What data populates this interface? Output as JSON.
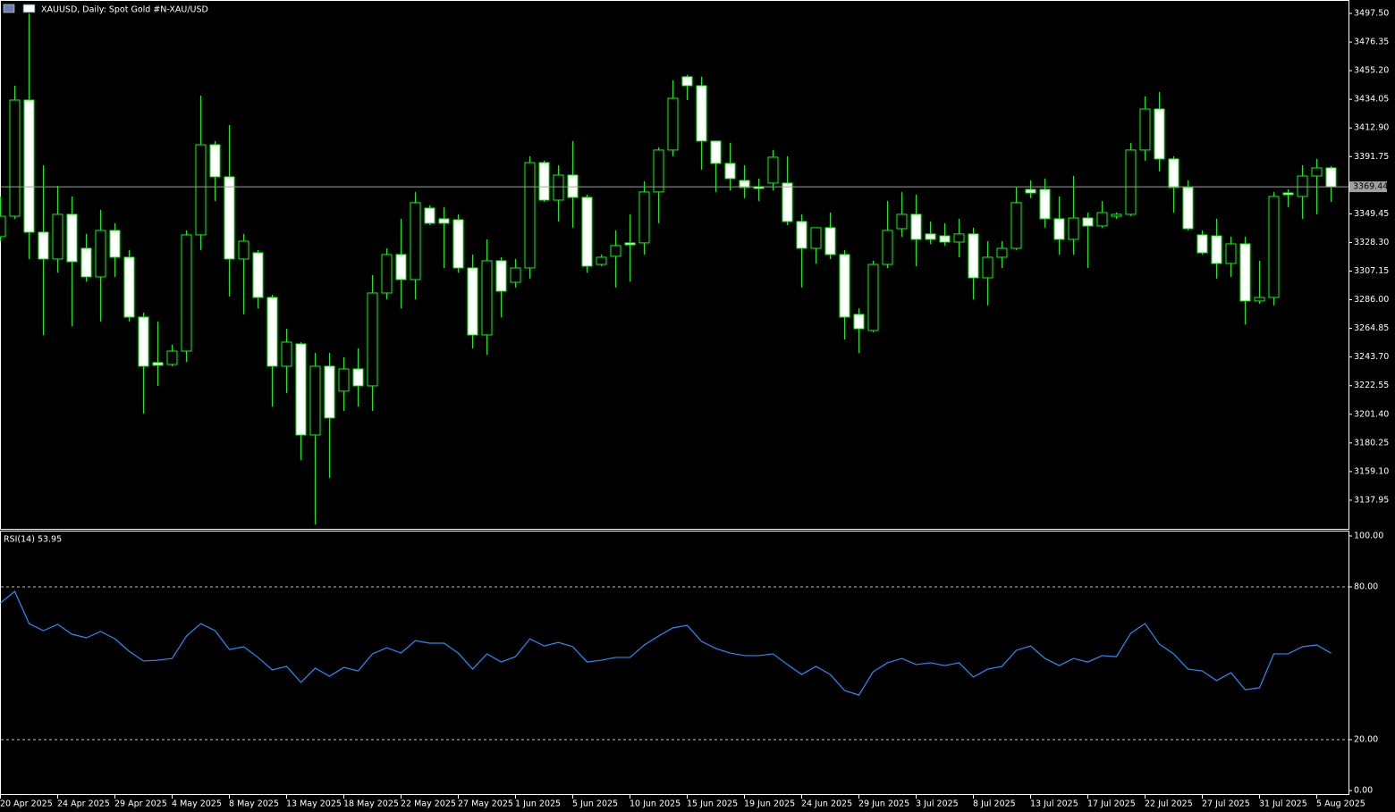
{
  "chart_data": [
    {
      "type": "candlestick",
      "title": "XAUUSD, Daily:  Spot Gold #N-XAU/USD",
      "categories": [
        "20 Apr 2025",
        null,
        null,
        null,
        "24 Apr 2025",
        null,
        null,
        null,
        "29 Apr 2025",
        null,
        null,
        null,
        "4 May 2025",
        null,
        null,
        null,
        "8 May 2025",
        null,
        null,
        null,
        "13 May 2025",
        null,
        null,
        null,
        "18 May 2025",
        null,
        null,
        null,
        "22 May 2025",
        null,
        null,
        null,
        "27 May 2025",
        null,
        null,
        null,
        "1 Jun 2025",
        null,
        null,
        null,
        "5 Jun 2025",
        null,
        null,
        null,
        "10 Jun 2025",
        null,
        null,
        null,
        "15 Jun 2025",
        null,
        null,
        null,
        "19 Jun 2025",
        null,
        null,
        null,
        "24 Jun 2025",
        null,
        null,
        null,
        "29 Jun 2025",
        null,
        null,
        null,
        "3 Jul 2025",
        null,
        null,
        null,
        "8 Jul 2025",
        null,
        null,
        null,
        "13 Jul 2025",
        null,
        null,
        null,
        "17 Jul 2025",
        null,
        null,
        null,
        "22 Jul 2025",
        null,
        null,
        null,
        "27 Jul 2025",
        null,
        null,
        null,
        "31 Jul 2025",
        null,
        null,
        null,
        "5 Aug 2025",
        null
      ],
      "open": [
        3332.6,
        3347.7,
        3433.5,
        3335.9,
        3316.1,
        3349.1,
        3324.0,
        3302.9,
        3337.2,
        3317.4,
        3273.2,
        3239.6,
        3238.2,
        3248.1,
        3333.9,
        3400.5,
        3376.8,
        3316.1,
        3320.7,
        3287.7,
        3236.9,
        3253.4,
        3186.1,
        3236.9,
        3218.5,
        3234.9,
        3222.4,
        3291.0,
        3319.4,
        3300.9,
        3353.7,
        3345.8,
        3345.1,
        3309.5,
        3260.0,
        3314.8,
        3298.9,
        3309.5,
        3387.3,
        3359.6,
        3378.1,
        3361.6,
        3312.1,
        3318.1,
        3328.0,
        3328.0,
        3365.6,
        3396.6,
        3450.7,
        3444.1,
        3403.2,
        3386.7,
        3374.1,
        3369.5,
        3372.2,
        3372.2,
        3343.8,
        3324.0,
        3339.2,
        3319.4,
        3275.2,
        3263.3,
        3312.1,
        3338.5,
        3349.1,
        3334.6,
        3333.2,
        3328.6,
        3334.6,
        3302.2,
        3317.4,
        3324.0,
        3367.5,
        3367.5,
        3345.8,
        3330.6,
        3346.4,
        3340.5,
        3347.7,
        3349.1,
        3396.6,
        3426.9,
        3390.0,
        3368.9,
        3333.9,
        3333.2,
        3312.8,
        3327.3,
        3285.1,
        3287.7,
        3364.9,
        3362.3,
        3377.4,
        3383.4
      ],
      "high": [
        3362.3,
        3444.1,
        3497.5,
        3385.4,
        3370.2,
        3362.3,
        3334.6,
        3352.4,
        3342.5,
        3322.7,
        3276.5,
        3269.9,
        3252.8,
        3337.2,
        3436.8,
        3403.2,
        3415.0,
        3334.6,
        3322.7,
        3289.7,
        3264.6,
        3254.7,
        3246.8,
        3246.8,
        3243.5,
        3250.1,
        3304.2,
        3324.0,
        3345.8,
        3365.6,
        3355.7,
        3354.4,
        3349.1,
        3319.4,
        3330.6,
        3317.4,
        3316.1,
        3392.0,
        3388.7,
        3385.4,
        3403.2,
        3363.6,
        3319.4,
        3337.2,
        3349.1,
        3373.5,
        3398.6,
        3448.0,
        3452.0,
        3450.7,
        3403.2,
        3401.9,
        3385.4,
        3375.5,
        3396.6,
        3392.0,
        3349.1,
        3339.2,
        3350.4,
        3322.7,
        3279.8,
        3314.8,
        3359.0,
        3365.6,
        3363.6,
        3343.8,
        3342.5,
        3345.8,
        3339.2,
        3329.3,
        3329.3,
        3368.9,
        3374.1,
        3375.5,
        3362.3,
        3377.4,
        3350.4,
        3359.0,
        3350.4,
        3401.9,
        3436.2,
        3439.5,
        3392.0,
        3374.1,
        3337.2,
        3345.8,
        3332.6,
        3332.6,
        3314.8,
        3365.6,
        3367.5,
        3385.4,
        3390.0,
        3384.7
      ],
      "low": [
        3329.3,
        3345.8,
        3316.1,
        3260.0,
        3306.2,
        3266.6,
        3299.6,
        3269.9,
        3302.9,
        3269.9,
        3202.0,
        3222.4,
        3236.9,
        3240.2,
        3322.7,
        3359.0,
        3288.4,
        3275.2,
        3279.8,
        3207.2,
        3217.1,
        3167.7,
        3120.2,
        3154.5,
        3203.9,
        3207.2,
        3203.9,
        3286.4,
        3279.8,
        3286.4,
        3341.2,
        3309.5,
        3306.2,
        3250.1,
        3245.5,
        3273.2,
        3295.0,
        3301.6,
        3358.3,
        3343.8,
        3339.2,
        3306.2,
        3310.8,
        3295.0,
        3299.6,
        3319.4,
        3342.5,
        3392.0,
        3433.5,
        3382.1,
        3365.6,
        3366.9,
        3361.0,
        3359.0,
        3366.9,
        3341.2,
        3295.0,
        3312.8,
        3316.1,
        3256.7,
        3246.8,
        3262.0,
        3309.5,
        3332.6,
        3310.8,
        3327.3,
        3326.0,
        3317.4,
        3286.4,
        3281.8,
        3309.5,
        3322.7,
        3361.0,
        3339.2,
        3319.4,
        3319.4,
        3309.5,
        3339.2,
        3345.8,
        3347.7,
        3388.7,
        3380.7,
        3350.4,
        3337.2,
        3319.4,
        3301.6,
        3302.9,
        3267.9,
        3283.1,
        3281.8,
        3354.4,
        3345.8,
        3349.1,
        3358.3
      ],
      "close": [
        3347.7,
        3433.5,
        3335.9,
        3316.1,
        3349.1,
        3314.1,
        3302.9,
        3337.2,
        3317.4,
        3273.2,
        3236.9,
        3237.6,
        3248.1,
        3333.9,
        3400.5,
        3376.8,
        3316.1,
        3329.3,
        3287.7,
        3236.9,
        3254.7,
        3186.1,
        3236.9,
        3198.7,
        3234.9,
        3222.4,
        3291.0,
        3319.4,
        3300.9,
        3357.7,
        3342.5,
        3342.5,
        3309.5,
        3260.0,
        3314.8,
        3292.3,
        3309.5,
        3387.3,
        3359.6,
        3378.1,
        3361.6,
        3310.8,
        3317.4,
        3326.0,
        3326.6,
        3365.6,
        3396.6,
        3434.8,
        3444.1,
        3403.2,
        3386.7,
        3375.5,
        3368.9,
        3368.2,
        3391.3,
        3343.8,
        3324.0,
        3339.2,
        3319.4,
        3273.2,
        3264.6,
        3312.1,
        3337.2,
        3349.1,
        3330.6,
        3330.6,
        3328.6,
        3334.6,
        3302.2,
        3317.4,
        3324.0,
        3357.7,
        3364.9,
        3345.8,
        3330.6,
        3346.4,
        3340.5,
        3350.4,
        3349.1,
        3396.6,
        3426.9,
        3390.0,
        3368.9,
        3338.5,
        3320.7,
        3312.8,
        3327.3,
        3285.1,
        3287.7,
        3362.3,
        3363.6,
        3377.4,
        3383.4,
        3369.44
      ],
      "wick_color": "#00ff00",
      "bull_fill": "#000000",
      "bear_fill": "#ffffff",
      "current_price": {
        "value": 3369.44,
        "label": "3369.44"
      },
      "ylim": [
        3116.8,
        3507.4
      ],
      "yticks": [
        {
          "value": 3497.5,
          "label": "3497.50"
        },
        {
          "value": 3476.35,
          "label": "3476.35"
        },
        {
          "value": 3455.2,
          "label": "3455.20"
        },
        {
          "value": 3434.05,
          "label": "3434.05"
        },
        {
          "value": 3412.9,
          "label": "3412.90"
        },
        {
          "value": 3391.75,
          "label": "3391.75"
        },
        {
          "value": 3349.45,
          "label": "3349.45"
        },
        {
          "value": 3328.3,
          "label": "3328.30"
        },
        {
          "value": 3307.15,
          "label": "3307.15"
        },
        {
          "value": 3286.0,
          "label": "3286.00"
        },
        {
          "value": 3264.85,
          "label": "3264.85"
        },
        {
          "value": 3243.7,
          "label": "3243.70"
        },
        {
          "value": 3222.55,
          "label": "3222.55"
        },
        {
          "value": 3201.4,
          "label": "3201.40"
        },
        {
          "value": 3180.25,
          "label": "3180.25"
        },
        {
          "value": 3159.1,
          "label": "3159.10"
        },
        {
          "value": 3137.95,
          "label": "3137.95"
        }
      ]
    },
    {
      "type": "line",
      "title": "RSI(14) 53.95",
      "color": "#1e90ff",
      "values": [
        73.7,
        78.2,
        65.6,
        62.8,
        65.3,
        61.4,
        60.0,
        62.5,
        59.6,
        54.7,
        50.9,
        51.2,
        51.9,
        60.7,
        65.6,
        62.8,
        55.4,
        56.5,
        52.3,
        47.4,
        48.8,
        42.5,
        48.1,
        44.9,
        48.4,
        47.0,
        53.7,
        56.1,
        54.0,
        58.9,
        57.9,
        57.9,
        54.0,
        47.7,
        53.7,
        50.5,
        52.6,
        59.6,
        56.8,
        58.2,
        56.5,
        50.5,
        51.2,
        52.3,
        52.3,
        57.2,
        60.7,
        63.9,
        64.9,
        58.6,
        55.8,
        54.0,
        53.0,
        53.0,
        53.7,
        49.5,
        45.6,
        48.8,
        45.6,
        39.3,
        37.5,
        46.7,
        50.2,
        51.9,
        49.5,
        50.2,
        49.1,
        50.2,
        44.6,
        47.7,
        48.8,
        55.1,
        56.8,
        51.9,
        49.1,
        51.9,
        50.5,
        53.0,
        52.6,
        61.8,
        65.6,
        57.5,
        53.7,
        47.7,
        47.0,
        43.2,
        46.3,
        39.6,
        40.4,
        53.7,
        53.7,
        56.5,
        57.2,
        53.95
      ],
      "levels": [
        80,
        20
      ],
      "ylim": [
        0,
        100
      ],
      "yticks": [
        {
          "value": 100,
          "label": "100.00"
        },
        {
          "value": 80,
          "label": "80.00"
        },
        {
          "value": 20,
          "label": "20.00"
        },
        {
          "value": 0,
          "label": "0.00"
        }
      ]
    }
  ]
}
